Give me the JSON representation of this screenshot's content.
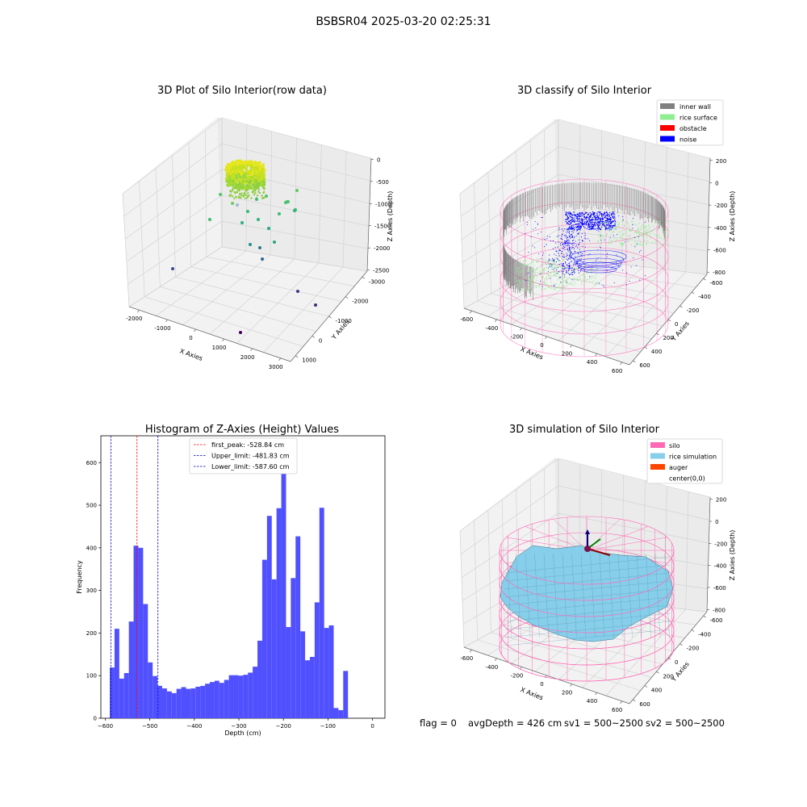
{
  "suptitle": "BSBSR04 2025-03-20 02:25:31",
  "status": {
    "flag": "flag = 0",
    "avg_depth": "avgDepth = 426 cm",
    "sv1": "sv1 = 500~2500",
    "sv2": "sv2 = 500~2500"
  },
  "chart_data": [
    {
      "type": "scatter",
      "title": "3D Plot of Silo Interior(row data)",
      "xlabel": "X Axies",
      "ylabel": "Y Axies",
      "zlabel": "Z Axies (Depth)",
      "x_ticks": [
        "-2000",
        "-1000",
        "0",
        "1000",
        "2000",
        "3000"
      ],
      "y_ticks": [
        "1000",
        "0",
        "-1000",
        "-2000",
        "-3000"
      ],
      "z_ticks": [
        "0",
        "-500",
        "-1000",
        "-1500",
        "-2000",
        "-2500"
      ],
      "colormap": "viridis",
      "colors": {
        "cluster": "#c8e020",
        "cluster_light": "#e6e61e",
        "scatter": "#35b779"
      }
    },
    {
      "type": "scatter",
      "title": "3D classify of Silo Interior",
      "xlabel": "X Axies",
      "ylabel": "Y Axies",
      "zlabel": "Z Axies (Depth)",
      "x_ticks": [
        "-600",
        "-400",
        "-200",
        "0",
        "200",
        "400",
        "600"
      ],
      "y_ticks": [
        "600",
        "400",
        "200",
        "0",
        "-200",
        "-400",
        "-600"
      ],
      "z_ticks": [
        "200",
        "0",
        "-200",
        "-400",
        "-600",
        "-800"
      ],
      "legend": [
        {
          "label": "inner wall",
          "color": "#808080"
        },
        {
          "label": "rice surface",
          "color": "#90ee90"
        },
        {
          "label": "obstacle",
          "color": "#ff0000"
        },
        {
          "label": "noise",
          "color": "#0000ff"
        }
      ],
      "colors": {
        "silo_wire": "#ff69b4"
      }
    },
    {
      "type": "bar",
      "title": "Histogram of Z-Axies (Height) Values",
      "xlabel": "Depth (cm)",
      "ylabel": "Frequency",
      "xlim": [
        -610,
        28
      ],
      "ylim": [
        0,
        663
      ],
      "x_ticks": [
        -600,
        -500,
        -400,
        -300,
        -200,
        -100,
        0
      ],
      "y_ticks": [
        0,
        100,
        200,
        300,
        400,
        500,
        600
      ],
      "bin_start": -590,
      "bin_width": 10.7,
      "values": [
        119,
        210,
        93,
        106,
        227,
        405,
        400,
        268,
        131,
        99,
        76,
        70,
        63,
        59,
        69,
        73,
        69,
        70,
        74,
        76,
        81,
        85,
        88,
        83,
        90,
        101,
        101,
        100,
        102,
        107,
        121,
        182,
        372,
        475,
        326,
        493,
        632,
        214,
        329,
        427,
        204,
        136,
        144,
        272,
        494,
        212,
        218,
        24,
        19,
        111
      ],
      "bar_color": "#5050ff",
      "vlines": [
        {
          "label": "first_peak: -528.84 cm",
          "value": -528.84,
          "color": "#ff0000"
        },
        {
          "label": "Upper_limit: -481.83 cm",
          "value": -481.83,
          "color": "#0000cc"
        },
        {
          "label": "Lower_limit: -587.60 cm",
          "value": -587.6,
          "color": "#0000cc"
        }
      ],
      "legend_position": "top-center"
    },
    {
      "type": "area",
      "title": "3D simulation of Silo Interior",
      "xlabel": "X Axies",
      "ylabel": "Y Axies",
      "zlabel": "Z Axies (Depth)",
      "x_ticks": [
        "-600",
        "-400",
        "-200",
        "0",
        "200",
        "400",
        "600"
      ],
      "y_ticks": [
        "600",
        "400",
        "200",
        "0",
        "-200",
        "-400",
        "-600"
      ],
      "z_ticks": [
        "200",
        "0",
        "-200",
        "-400",
        "-600",
        "-800"
      ],
      "legend": [
        {
          "label": "silo",
          "color": "#ff69b4"
        },
        {
          "label": "rice simulation",
          "color": "#87ceeb"
        },
        {
          "label": "auger",
          "color": "#ff4500"
        },
        {
          "label": "center(0,0)",
          "color": ""
        }
      ]
    }
  ]
}
